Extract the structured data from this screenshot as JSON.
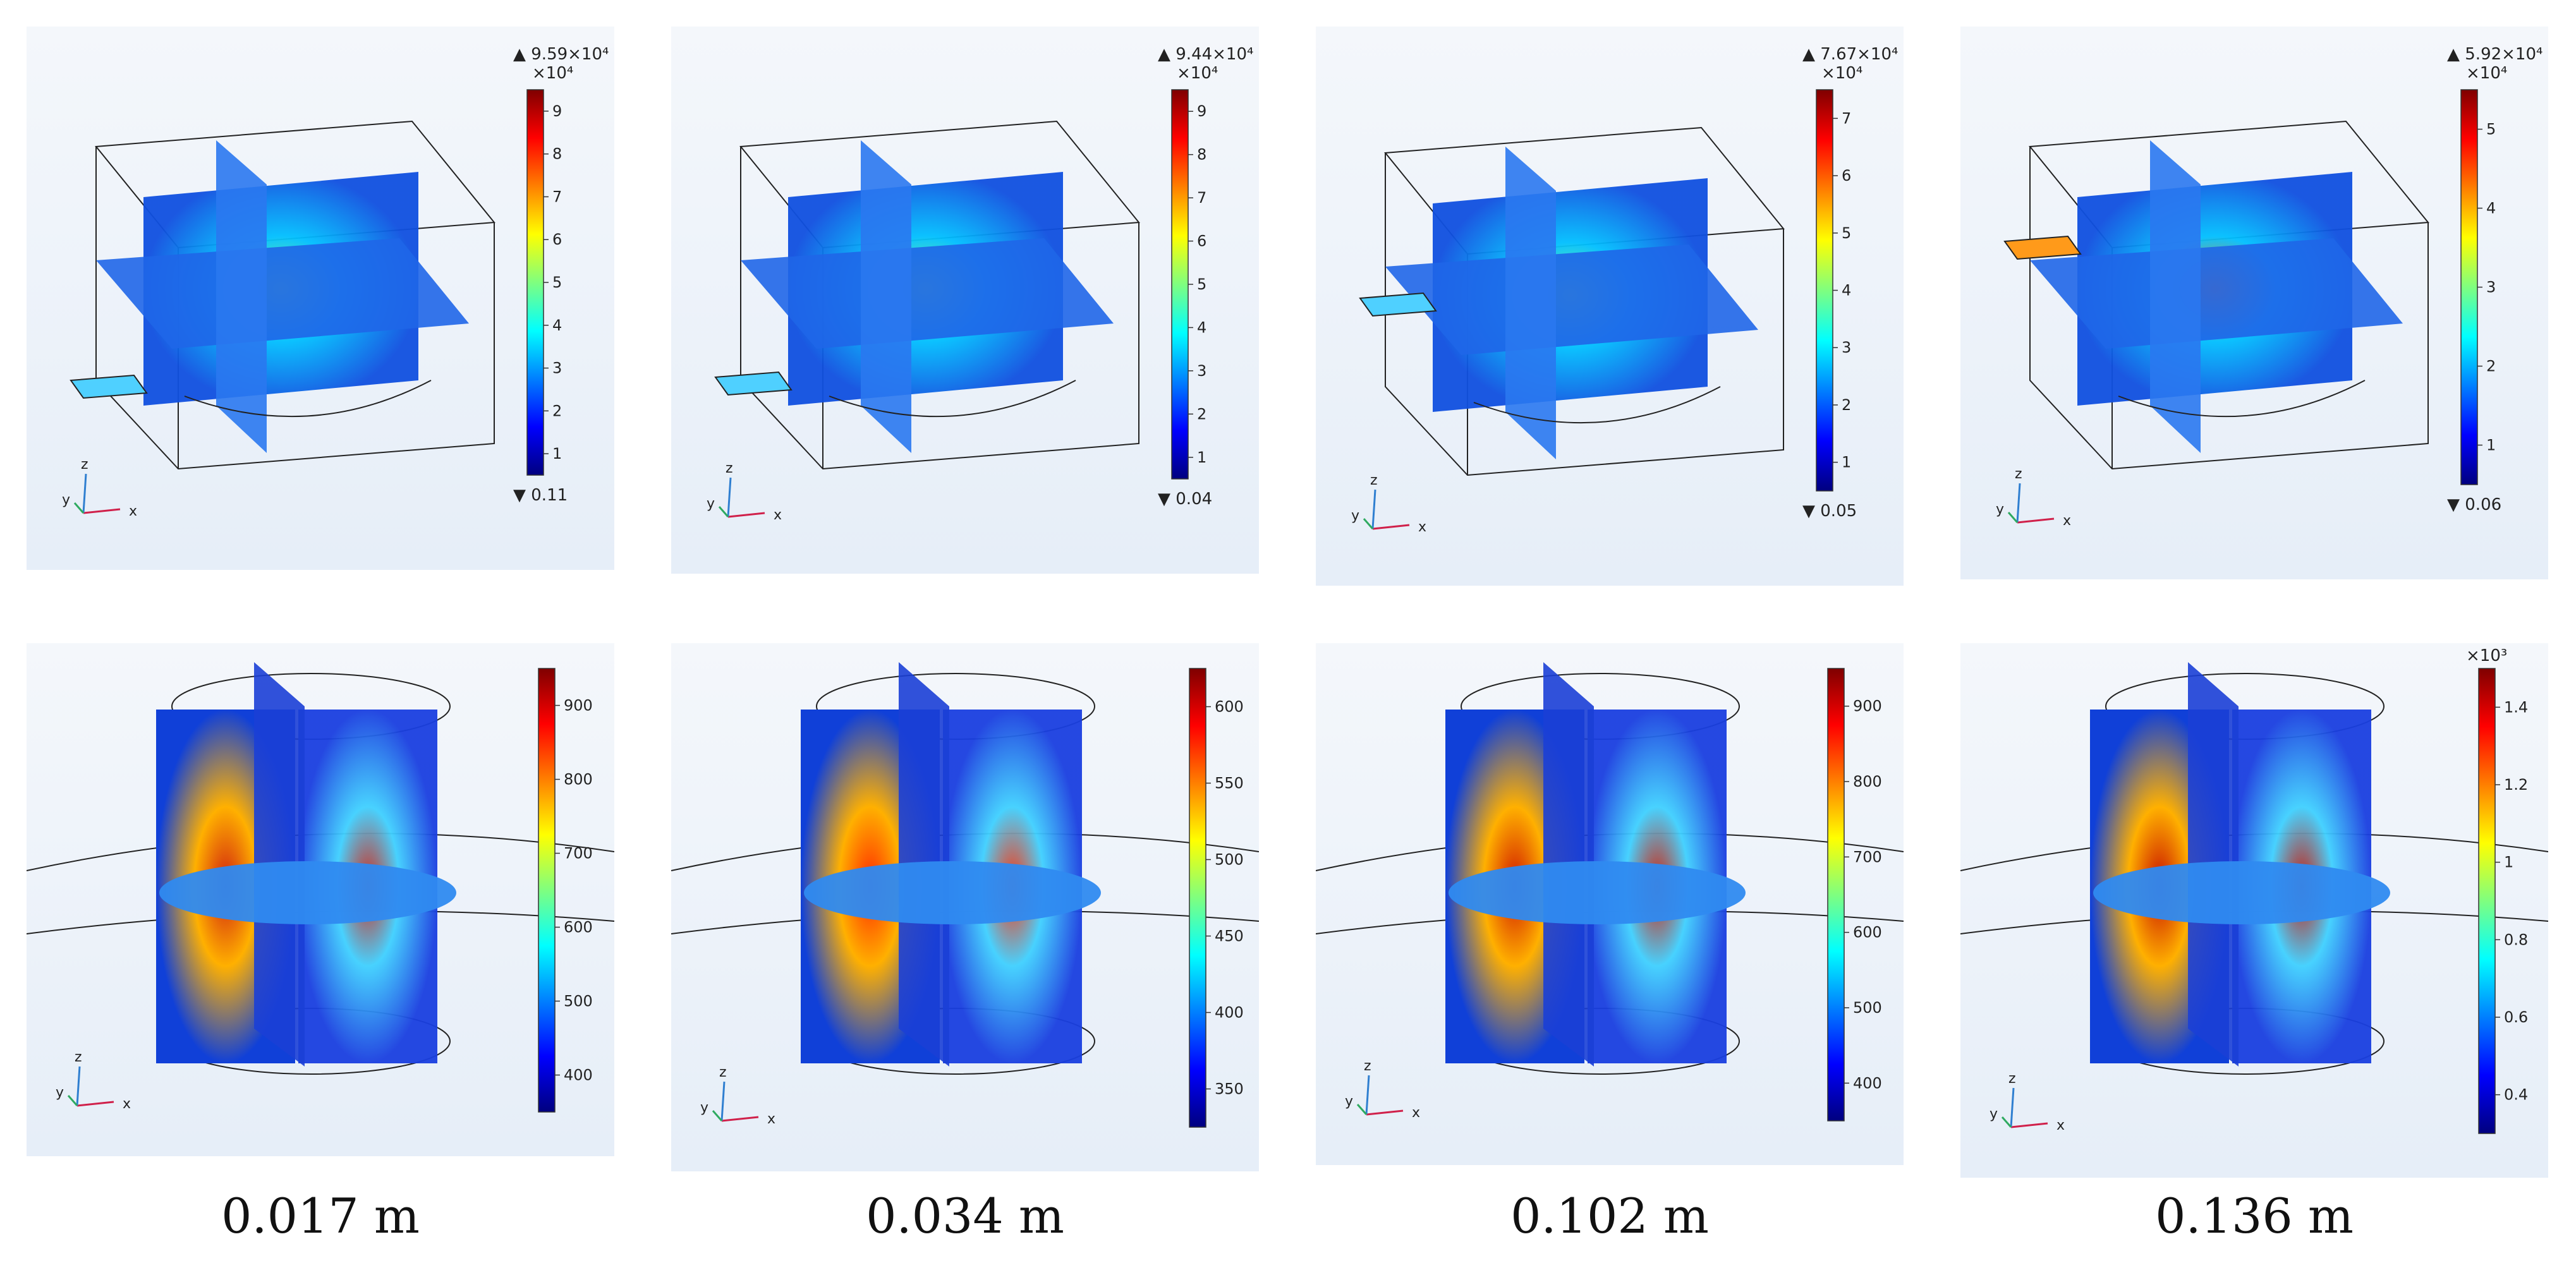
{
  "colors": {
    "jet": [
      "#00007f",
      "#0000ff",
      "#007fff",
      "#00ffff",
      "#7fff7f",
      "#ffff00",
      "#ff7f00",
      "#ff0000",
      "#7f0000"
    ],
    "frame": "#222222",
    "axis_x": "#d0204a",
    "axis_z": "#2f7fd0",
    "axis_y": "#2faa60"
  },
  "axis_labels": {
    "x": "x",
    "y": "y",
    "z": "z"
  },
  "panels_top": [
    {
      "max_label": "9.59×10⁴",
      "exp_label": "×10⁴",
      "min_label": "0.11",
      "ticks": [
        "9",
        "8",
        "7",
        "6",
        "5",
        "4",
        "3",
        "2",
        "1"
      ]
    },
    {
      "max_label": "9.44×10⁴",
      "exp_label": "×10⁴",
      "min_label": "0.04",
      "ticks": [
        "9",
        "8",
        "7",
        "6",
        "5",
        "4",
        "3",
        "2",
        "1"
      ]
    },
    {
      "max_label": "7.67×10⁴",
      "exp_label": "×10⁴",
      "min_label": "0.05",
      "ticks": [
        "7",
        "6",
        "5",
        "4",
        "3",
        "2",
        "1"
      ]
    },
    {
      "max_label": "5.92×10⁴",
      "exp_label": "×10⁴",
      "min_label": "0.06",
      "ticks": [
        "5",
        "4",
        "3",
        "2",
        "1"
      ]
    }
  ],
  "panels_bottom": [
    {
      "exp_label": "",
      "ticks": [
        "900",
        "800",
        "700",
        "600",
        "500",
        "400"
      ]
    },
    {
      "exp_label": "",
      "ticks": [
        "600",
        "550",
        "500",
        "450",
        "400",
        "350"
      ]
    },
    {
      "exp_label": "",
      "ticks": [
        "900",
        "800",
        "700",
        "600",
        "500",
        "400"
      ]
    },
    {
      "exp_label": "×10³",
      "ticks": [
        "1.4",
        "1.2",
        "1",
        "0.8",
        "0.6",
        "0.4"
      ]
    }
  ],
  "captions": [
    "0.017 m",
    "0.034 m",
    "0.102 m",
    "0.136 m"
  ]
}
